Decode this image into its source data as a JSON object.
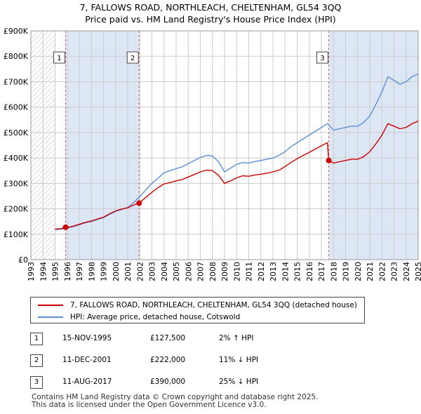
{
  "title_line1": "7, FALLOWS ROAD, NORTHLEACH, CHELTENHAM, GL54 3QQ",
  "title_line2": "Price paid vs. HM Land Registry's House Price Index (HPI)",
  "colors": {
    "property": "#cc0000",
    "hpi": "#5b8fd6",
    "sale_shade": "#dde6f5",
    "sale_line": "#e06060",
    "grid": "#cccccc"
  },
  "legend": {
    "property_label": "7, FALLOWS ROAD, NORTHLEACH, CHELTENHAM, GL54 3QQ (detached house)",
    "hpi_label": "HPI: Average price, detached house, Cotswold"
  },
  "sales": [
    {
      "num": "1",
      "date": "15-NOV-1995",
      "price": "£127,500",
      "hpi": "2% ↑ HPI",
      "t": 1995.87,
      "value": 127500
    },
    {
      "num": "2",
      "date": "11-DEC-2001",
      "price": "£222,000",
      "hpi": "11% ↓ HPI",
      "t": 2001.94,
      "value": 222000
    },
    {
      "num": "3",
      "date": "11-AUG-2017",
      "price": "£390,000",
      "hpi": "25% ↓ HPI",
      "t": 2017.61,
      "value": 390000
    }
  ],
  "footer": {
    "line1": "Contains HM Land Registry data © Crown copyright and database right 2025.",
    "line2": "This data is licensed under the Open Government Licence v3.0."
  },
  "chart_data": {
    "type": "line",
    "title": "7, FALLOWS ROAD, NORTHLEACH, CHELTENHAM, GL54 3QQ",
    "subtitle": "Price paid vs. HM Land Registry's House Price Index (HPI)",
    "xlabel": "",
    "ylabel": "",
    "xlim": [
      1993,
      2025
    ],
    "ylim": [
      0,
      900000
    ],
    "hatched_before": 1995,
    "x_ticks": [
      "1993",
      "1994",
      "1995",
      "1996",
      "1997",
      "1998",
      "1999",
      "2000",
      "2001",
      "2002",
      "2003",
      "2004",
      "2005",
      "2006",
      "2007",
      "2008",
      "2009",
      "2010",
      "2011",
      "2012",
      "2013",
      "2014",
      "2015",
      "2016",
      "2017",
      "2018",
      "2019",
      "2020",
      "2021",
      "2022",
      "2023",
      "2024",
      "2025"
    ],
    "y_ticks": [
      {
        "value": 0,
        "label": "£0"
      },
      {
        "value": 100000,
        "label": "£100K"
      },
      {
        "value": 200000,
        "label": "£200K"
      },
      {
        "value": 300000,
        "label": "£300K"
      },
      {
        "value": 400000,
        "label": "£400K"
      },
      {
        "value": 500000,
        "label": "£500K"
      },
      {
        "value": 600000,
        "label": "£600K"
      },
      {
        "value": 700000,
        "label": "£700K"
      },
      {
        "value": 800000,
        "label": "£800K"
      },
      {
        "value": 900000,
        "label": "£900K"
      }
    ],
    "series": [
      {
        "name": "HPI: Average price, detached house, Cotswold",
        "x": [
          1995.0,
          1995.5,
          1996.0,
          1996.5,
          1997.0,
          1997.5,
          1998.0,
          1998.5,
          1999.0,
          1999.5,
          2000.0,
          2000.5,
          2001.0,
          2001.5,
          2002.0,
          2002.5,
          2003.0,
          2003.5,
          2004.0,
          2004.5,
          2005.0,
          2005.5,
          2006.0,
          2006.5,
          2007.0,
          2007.5,
          2008.0,
          2008.5,
          2009.0,
          2009.5,
          2010.0,
          2010.5,
          2011.0,
          2011.5,
          2012.0,
          2012.5,
          2013.0,
          2013.5,
          2014.0,
          2014.5,
          2015.0,
          2015.5,
          2016.0,
          2016.5,
          2017.0,
          2017.5,
          2018.0,
          2018.5,
          2019.0,
          2019.5,
          2020.0,
          2020.5,
          2021.0,
          2021.5,
          2022.0,
          2022.5,
          2023.0,
          2023.5,
          2024.0,
          2024.5,
          2025.0
        ],
        "values": [
          118000,
          120000,
          124000,
          130000,
          137000,
          145000,
          150000,
          158000,
          165000,
          178000,
          190000,
          197000,
          205000,
          225000,
          248000,
          275000,
          300000,
          320000,
          342000,
          350000,
          358000,
          365000,
          378000,
          390000,
          402000,
          410000,
          408000,
          385000,
          345000,
          360000,
          375000,
          382000,
          380000,
          386000,
          390000,
          395000,
          400000,
          410000,
          425000,
          445000,
          460000,
          475000,
          490000,
          505000,
          520000,
          535000,
          510000,
          515000,
          520000,
          525000,
          525000,
          540000,
          565000,
          610000,
          660000,
          720000,
          705000,
          690000,
          700000,
          720000,
          730000
        ]
      },
      {
        "name": "7, FALLOWS ROAD, NORTHLEACH, CHELTENHAM, GL54 3QQ (detached house)",
        "x": [
          1995.0,
          1995.5,
          1995.87,
          1996.0,
          1996.5,
          1997.0,
          1997.5,
          1998.0,
          1998.5,
          1999.0,
          1999.5,
          2000.0,
          2000.5,
          2001.0,
          2001.5,
          2001.94,
          2002.0,
          2002.5,
          2003.0,
          2003.5,
          2004.0,
          2004.5,
          2005.0,
          2005.5,
          2006.0,
          2006.5,
          2007.0,
          2007.5,
          2008.0,
          2008.5,
          2009.0,
          2009.5,
          2010.0,
          2010.5,
          2011.0,
          2011.5,
          2012.0,
          2012.5,
          2013.0,
          2013.5,
          2014.0,
          2014.5,
          2015.0,
          2015.5,
          2016.0,
          2016.5,
          2017.0,
          2017.5,
          2017.61,
          2018.0,
          2018.5,
          2019.0,
          2019.5,
          2020.0,
          2020.5,
          2021.0,
          2021.5,
          2022.0,
          2022.5,
          2023.0,
          2023.5,
          2024.0,
          2024.5,
          2025.0
        ],
        "values": [
          120000,
          122000,
          127500,
          126000,
          132000,
          139000,
          147000,
          152000,
          160000,
          167000,
          180000,
          192000,
          199000,
          204000,
          215000,
          222000,
          225000,
          245000,
          265000,
          283000,
          298000,
          303000,
          310000,
          315000,
          325000,
          335000,
          345000,
          352000,
          350000,
          332000,
          300000,
          310000,
          322000,
          330000,
          328000,
          333000,
          336000,
          340000,
          345000,
          352000,
          366000,
          383000,
          397000,
          410000,
          422000,
          435000,
          448000,
          460000,
          390000,
          380000,
          385000,
          390000,
          395000,
          395000,
          405000,
          425000,
          455000,
          490000,
          535000,
          525000,
          515000,
          520000,
          535000,
          545000
        ]
      }
    ],
    "annotations": [
      {
        "label": "1",
        "x": 1995.87
      },
      {
        "label": "2",
        "x": 2001.94
      },
      {
        "label": "3",
        "x": 2017.61
      }
    ]
  }
}
